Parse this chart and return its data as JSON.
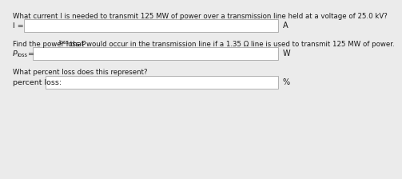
{
  "bg_color": "#ebebeb",
  "box_color": "#ffffff",
  "box_edge_color": "#b0b0b0",
  "text_color": "#1a1a1a",
  "question1": "What current I is needed to transmit 125 MW of power over a transmission line held at a voltage of 25.0 kV?",
  "label1_main": "I =",
  "unit1": "A",
  "question2_pre": "Find the power loss P",
  "question2_sub": "loss",
  "question2_post": " that would occur in the transmission line if a 1.35 Ω line is used to transmit 125 MW of power.",
  "label2_main": "P",
  "label2_sub": "loss",
  "label2_eq": " =",
  "unit2": "W",
  "question3": "What percent loss does this represent?",
  "label3": "percent loss:",
  "unit3": "%",
  "font_size_q": 6.2,
  "font_size_label": 6.8,
  "font_size_unit": 7.0,
  "font_size_sub": 4.8
}
